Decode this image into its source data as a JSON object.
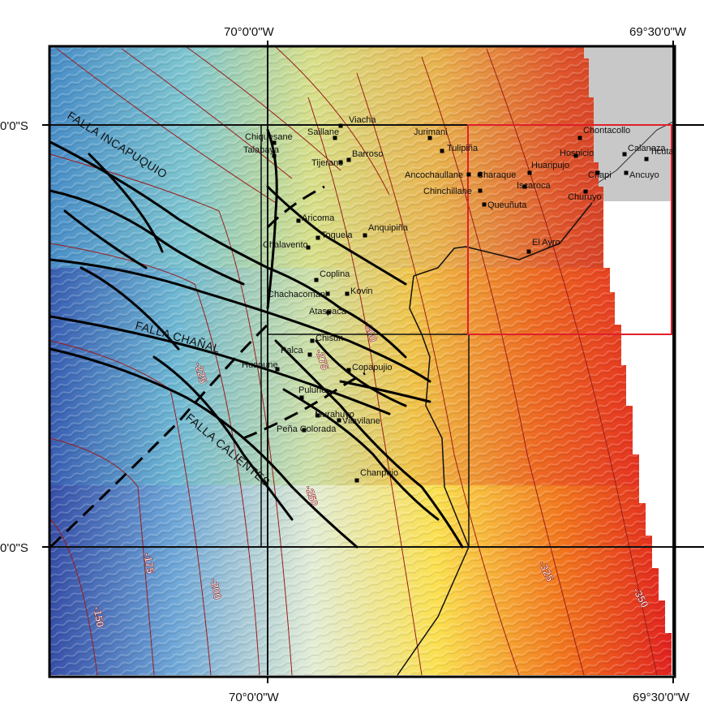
{
  "coords": {
    "top_left": "70°0'0\"W",
    "top_right": "69°30'0\"W",
    "bottom_left": "70°0'0\"W",
    "bottom_right": "69°30'0\"W",
    "left_top": "0'0\"S",
    "left_bottom": "0'0\"S"
  },
  "faults": {
    "incapuquio": "FALLA INCAPUQUIO",
    "chanal": "FALLA CHAÑAL",
    "calientes": "FALLA CALIENTES"
  },
  "contours": [
    "-150",
    "-175",
    "-200",
    "-225",
    "-250",
    "-275",
    "-300",
    "-325",
    "-350"
  ],
  "towns": [
    "Viacha",
    "Saillane",
    "Chiquesane",
    "Talabaya",
    "Tijerane",
    "Barroso",
    "Jurimani",
    "Tulipiña",
    "Ancochaullane",
    "Charaque",
    "Chinchillane",
    "Queuñuta",
    "Huaripujo",
    "Iscaroca",
    "Chontacollo",
    "Hospicio",
    "Calanaza",
    "Ticuta",
    "Chapi",
    "Ancuyo",
    "Churuyo",
    "El Ayro",
    "Aricoma",
    "Chalavento",
    "Toquela",
    "Anquipiña",
    "Coplina",
    "Chachacomani",
    "Kovin",
    "Ataspaca",
    "Palca",
    "Chisun",
    "Huanune",
    "Copapujio",
    "Pulune",
    "Murahuyo",
    "Vilavilane",
    "Peña Colorada",
    "Chanpujo"
  ],
  "colors": {
    "frame": "#000000",
    "contour": "#9a1c1c",
    "highlight_box": "#e0202a",
    "fault": "#000000"
  }
}
